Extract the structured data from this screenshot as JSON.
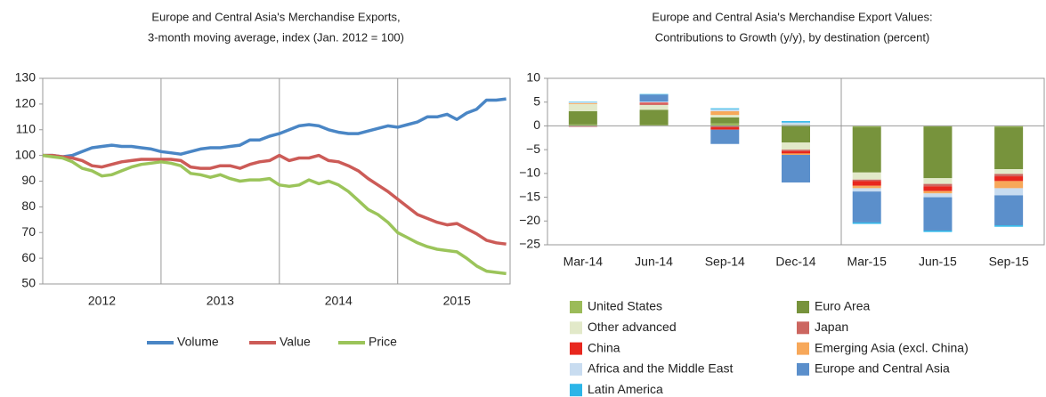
{
  "chart_data": [
    {
      "type": "line",
      "title": "Europe and Central Asia's Merchandise Exports,",
      "subtitle": "3-month moving average, index (Jan. 2012 = 100)",
      "x": [
        2012,
        2012.083,
        2012.167,
        2012.25,
        2012.333,
        2012.417,
        2012.5,
        2012.583,
        2012.667,
        2012.75,
        2012.833,
        2012.917,
        2013,
        2013.083,
        2013.167,
        2013.25,
        2013.333,
        2013.417,
        2013.5,
        2013.583,
        2013.667,
        2013.75,
        2013.833,
        2013.917,
        2014,
        2014.083,
        2014.167,
        2014.25,
        2014.333,
        2014.417,
        2014.5,
        2014.583,
        2014.667,
        2014.75,
        2014.833,
        2014.917,
        2015,
        2015.083,
        2015.167,
        2015.25,
        2015.333,
        2015.417,
        2015.5,
        2015.583,
        2015.667,
        2015.75,
        2015.833,
        2015.917
      ],
      "xlim": [
        2012,
        2015.95
      ],
      "xticks": [
        {
          "value": 2012.5,
          "label": "2012"
        },
        {
          "value": 2013.5,
          "label": "2013"
        },
        {
          "value": 2014.5,
          "label": "2014"
        },
        {
          "value": 2015.5,
          "label": "2015"
        }
      ],
      "xgrid": [
        2013,
        2014,
        2015
      ],
      "ylim": [
        50,
        130
      ],
      "yticks": [
        50,
        60,
        70,
        80,
        90,
        100,
        110,
        120,
        130
      ],
      "series": [
        {
          "name": "Volume",
          "color": "#4a86c5",
          "values": [
            100,
            100,
            99.5,
            100,
            101.5,
            103,
            103.5,
            104,
            103.5,
            103.5,
            103,
            102.5,
            101.5,
            101,
            100.5,
            101.5,
            102.5,
            103,
            103,
            103.5,
            104,
            106,
            106,
            107.5,
            108.5,
            110,
            111.5,
            112,
            111.5,
            110,
            109,
            108.5,
            108.5,
            109.5,
            110.5,
            111.5,
            111,
            112,
            113,
            115,
            115,
            116,
            114,
            116.5,
            118,
            121.5,
            121.5,
            122
          ]
        },
        {
          "name": "Value",
          "color": "#cc5b57",
          "values": [
            100,
            100,
            99.5,
            99,
            98,
            96,
            95.5,
            96.5,
            97.5,
            98,
            98.5,
            98.5,
            98.5,
            98.5,
            98,
            95.5,
            95,
            95,
            96,
            96,
            95,
            96.5,
            97.5,
            98,
            100,
            98,
            99,
            99,
            100,
            98,
            97.5,
            96,
            94,
            91,
            88.5,
            86,
            83,
            80,
            77,
            75.5,
            74,
            73,
            73.5,
            71.5,
            69.5,
            67,
            66,
            65.5
          ]
        },
        {
          "name": "Price",
          "color": "#9bc45a",
          "values": [
            100,
            99.5,
            99,
            97.5,
            95,
            94,
            92,
            92.5,
            94,
            95.5,
            96.5,
            97,
            97.5,
            97,
            96,
            93,
            92.5,
            91.5,
            92.5,
            91,
            90,
            90.5,
            90.5,
            91,
            88.5,
            88,
            88.5,
            90.5,
            89,
            90,
            88.5,
            86,
            82.5,
            79,
            77,
            74,
            70,
            68,
            66,
            64.5,
            63.5,
            63,
            62.5,
            60,
            57,
            55,
            54.5,
            54
          ]
        }
      ]
    },
    {
      "type": "stacked-bar",
      "title": "Europe and Central Asia's Merchandise Export Values:",
      "subtitle": "Contributions to Growth (y/y), by destination (percent)",
      "categories": [
        "Mar-14",
        "Jun-14",
        "Sep-14",
        "Dec-14",
        "Mar-15",
        "Jun-15",
        "Sep-15"
      ],
      "ylim": [
        -25,
        10
      ],
      "yticks": [
        {
          "value": -25,
          "label": "−25"
        },
        {
          "value": -20,
          "label": "−20"
        },
        {
          "value": -15,
          "label": "−15"
        },
        {
          "value": -10,
          "label": "−10"
        },
        {
          "value": -5,
          "label": "−5"
        },
        0,
        5,
        10
      ],
      "series": [
        {
          "name": "United States",
          "color": "#9bbb59",
          "values": [
            0.3,
            0.2,
            0.5,
            0.2,
            -0.3,
            -0.2,
            -0.3
          ]
        },
        {
          "name": "Euro Area",
          "color": "#77933c",
          "values": [
            2.8,
            3.2,
            1.3,
            -3.5,
            -9.5,
            -10.8,
            -8.8
          ]
        },
        {
          "name": "Other advanced",
          "color": "#e2e9c9",
          "values": [
            1.5,
            1.0,
            0.5,
            -1.5,
            -1.5,
            -1.2,
            -1.0
          ]
        },
        {
          "name": "Japan",
          "color": "#cc6660",
          "values": [
            -0.2,
            0.3,
            -0.3,
            -0.3,
            -0.3,
            -0.5,
            -0.5
          ]
        },
        {
          "name": "China",
          "color": "#e8271e",
          "values": [
            0,
            0.2,
            -0.5,
            -0.5,
            -1.0,
            -1.0,
            -1.0
          ]
        },
        {
          "name": "Emerging Asia (excl. China)",
          "color": "#f7a85a",
          "values": [
            0.2,
            0,
            0.8,
            -0.3,
            -0.5,
            -0.5,
            -1.5
          ]
        },
        {
          "name": "Africa and the Middle East",
          "color": "#c8dcf0",
          "values": [
            0.2,
            0.2,
            0.4,
            0.5,
            -0.7,
            -0.8,
            -1.5
          ]
        },
        {
          "name": "Europe and Central Asia",
          "color": "#5b8fcb",
          "values": [
            0,
            1.5,
            -3.0,
            -5.8,
            -6.5,
            -7.0,
            -6.3
          ]
        },
        {
          "name": "Latin America",
          "color": "#2bb5e8",
          "values": [
            0.1,
            0.1,
            0.2,
            0.3,
            -0.3,
            -0.3,
            -0.3
          ]
        }
      ]
    }
  ]
}
